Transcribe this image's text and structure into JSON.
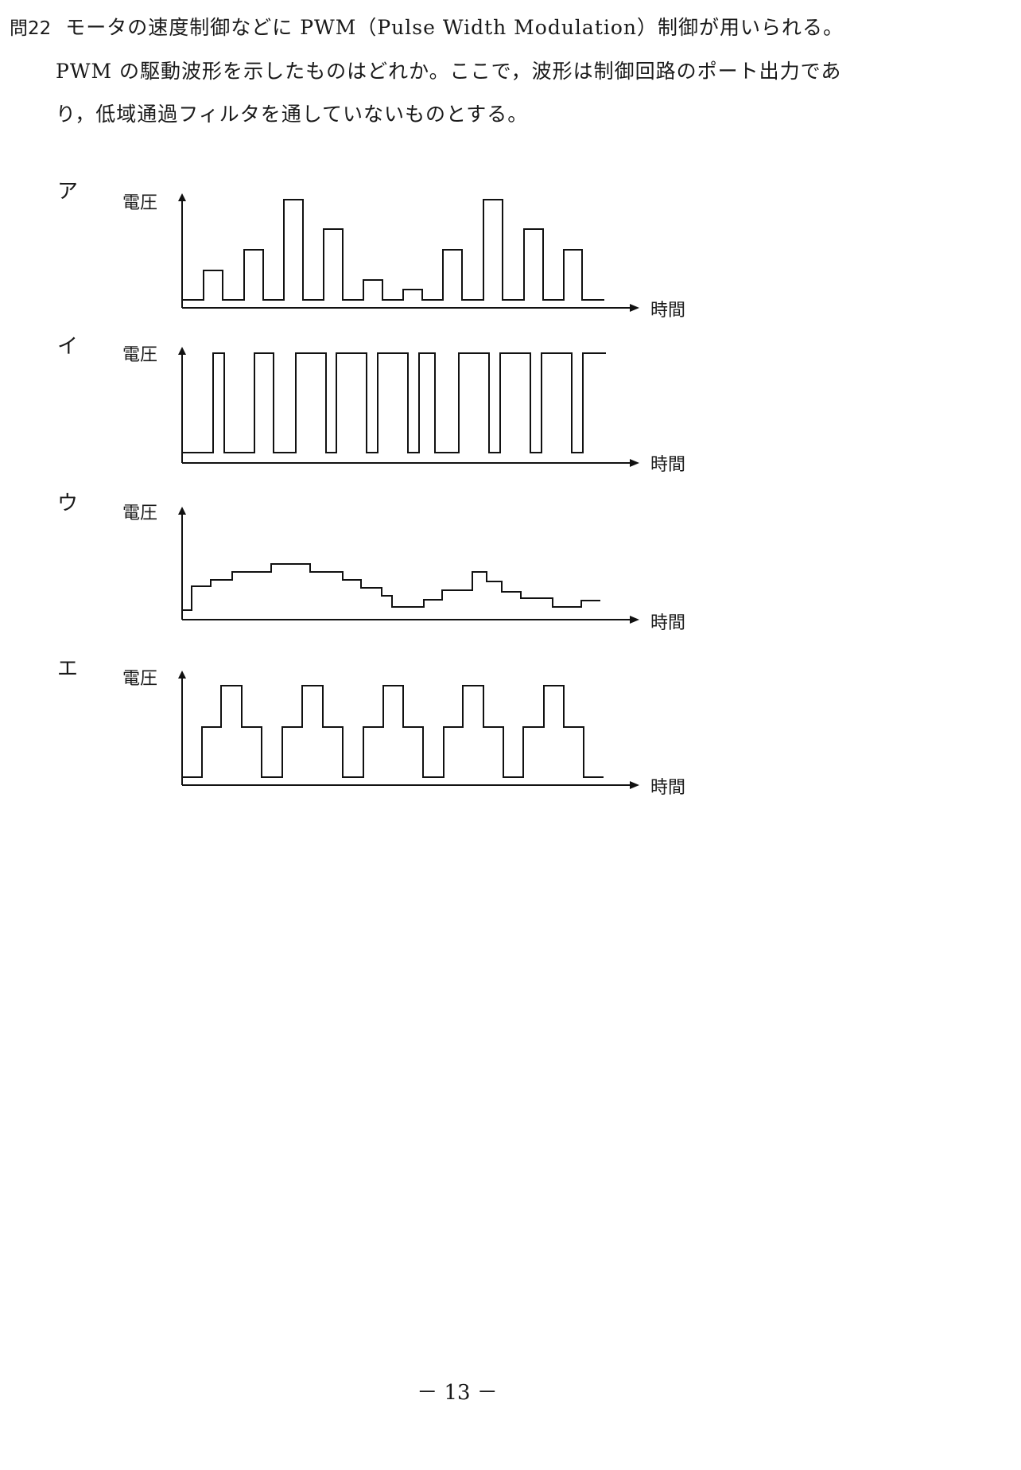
{
  "question": {
    "number": "問22",
    "line1": "モータの速度制御などに PWM（Pulse Width Modulation）制御が用いられる。",
    "line2": "PWM の駆動波形を示したものはどれか。ここで，波形は制御回路のポート出力であ",
    "line3": "り，低域通過フィルタを通していないものとする。"
  },
  "choices": [
    {
      "label": "ア",
      "y_axis_label": "電圧",
      "x_axis_label": "時間"
    },
    {
      "label": "イ",
      "y_axis_label": "電圧",
      "x_axis_label": "時間"
    },
    {
      "label": "ウ",
      "y_axis_label": "電圧",
      "x_axis_label": "時間"
    },
    {
      "label": "エ",
      "y_axis_label": "電圧",
      "x_axis_label": "時間"
    }
  ],
  "page_number": "－ 13 －"
}
